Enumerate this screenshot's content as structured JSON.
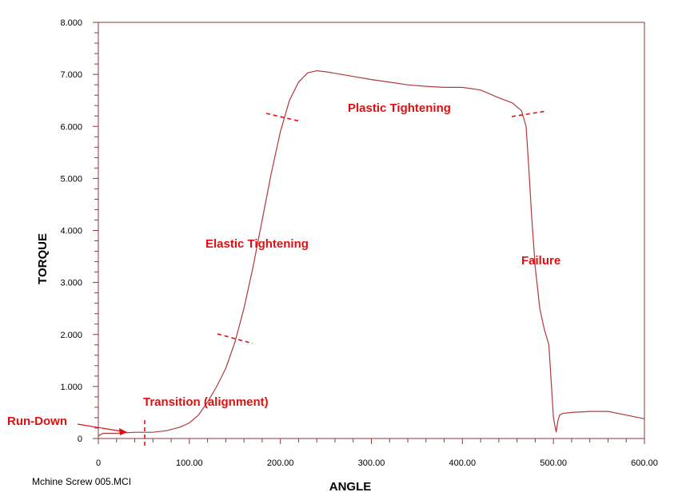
{
  "chart_data": {
    "type": "line",
    "title": "",
    "xlabel": "ANGLE",
    "ylabel": "TORQUE",
    "xlim": [
      0,
      600
    ],
    "ylim": [
      0,
      8
    ],
    "x_ticks": [
      "0",
      "100.00",
      "200.00",
      "300.00",
      "400.00",
      "500.00",
      "600.00"
    ],
    "y_ticks": [
      "0",
      "1.000",
      "2.000",
      "3.000",
      "4.000",
      "5.000",
      "6.000",
      "7.000",
      "8.000"
    ],
    "grid": false,
    "series": [
      {
        "x": [
          0,
          5,
          20,
          40,
          60,
          75,
          90,
          100,
          110,
          120,
          130,
          140,
          150,
          160,
          170,
          180,
          190,
          200,
          210,
          220,
          230,
          240,
          250,
          260,
          280,
          300,
          320,
          340,
          360,
          380,
          400,
          420,
          440,
          455,
          465,
          470,
          473,
          476,
          480,
          485,
          490,
          495,
          500,
          503,
          505,
          507,
          510,
          520,
          540,
          560,
          580,
          600
        ],
        "y": [
          0.05,
          0.1,
          0.1,
          0.12,
          0.12,
          0.15,
          0.22,
          0.3,
          0.45,
          0.7,
          1.0,
          1.35,
          1.85,
          2.5,
          3.3,
          4.2,
          5.1,
          5.9,
          6.5,
          6.85,
          7.03,
          7.07,
          7.05,
          7.02,
          6.96,
          6.9,
          6.85,
          6.8,
          6.77,
          6.75,
          6.75,
          6.7,
          6.55,
          6.45,
          6.3,
          6.0,
          5.2,
          4.3,
          3.3,
          2.5,
          2.1,
          1.8,
          0.4,
          0.12,
          0.35,
          0.45,
          0.48,
          0.5,
          0.52,
          0.52,
          0.45,
          0.38
        ]
      }
    ],
    "annotations": {
      "run_down": "Run-Down",
      "transition": "Transition (alignment)",
      "elastic": "Elastic Tightening",
      "plastic": "Plastic Tightening",
      "failure": "Failure"
    },
    "colors": {
      "line": "#b03a3a",
      "frame": "#8b3a3a",
      "annotation": "#e01010"
    }
  },
  "footer": {
    "filename": "Mchine Screw  005.MCI"
  }
}
